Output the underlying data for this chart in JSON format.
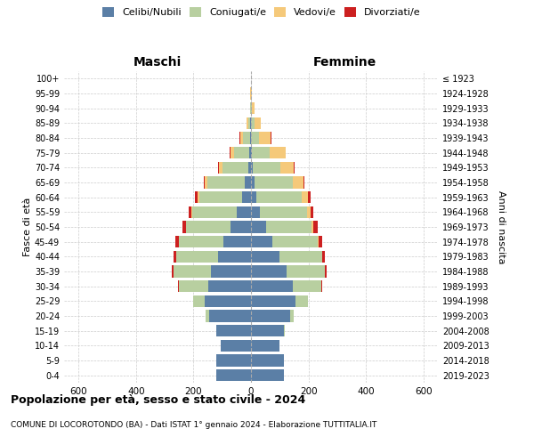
{
  "age_groups": [
    "0-4",
    "5-9",
    "10-14",
    "15-19",
    "20-24",
    "25-29",
    "30-34",
    "35-39",
    "40-44",
    "45-49",
    "50-54",
    "55-59",
    "60-64",
    "65-69",
    "70-74",
    "75-79",
    "80-84",
    "85-89",
    "90-94",
    "95-99",
    "100+"
  ],
  "birth_years": [
    "2019-2023",
    "2014-2018",
    "2009-2013",
    "2004-2008",
    "1999-2003",
    "1994-1998",
    "1989-1993",
    "1984-1988",
    "1979-1983",
    "1974-1978",
    "1969-1973",
    "1964-1968",
    "1959-1963",
    "1954-1958",
    "1949-1953",
    "1944-1948",
    "1939-1943",
    "1934-1938",
    "1929-1933",
    "1924-1928",
    "≤ 1923"
  ],
  "males": {
    "celibi": [
      120,
      120,
      105,
      120,
      145,
      160,
      150,
      140,
      115,
      95,
      70,
      50,
      30,
      22,
      10,
      5,
      3,
      2,
      0,
      0,
      0
    ],
    "coniugati": [
      0,
      0,
      0,
      2,
      12,
      40,
      100,
      130,
      145,
      155,
      155,
      155,
      150,
      130,
      90,
      55,
      25,
      8,
      2,
      1,
      0
    ],
    "vedovi": [
      0,
      0,
      0,
      0,
      0,
      0,
      0,
      0,
      0,
      0,
      2,
      3,
      5,
      8,
      10,
      12,
      10,
      6,
      2,
      1,
      0
    ],
    "divorziati": [
      0,
      0,
      0,
      0,
      0,
      2,
      3,
      5,
      10,
      12,
      12,
      10,
      10,
      5,
      3,
      2,
      1,
      1,
      0,
      0,
      0
    ]
  },
  "females": {
    "nubili": [
      115,
      115,
      100,
      115,
      135,
      155,
      145,
      125,
      100,
      75,
      52,
      32,
      20,
      12,
      6,
      3,
      1,
      1,
      0,
      0,
      0
    ],
    "coniugate": [
      0,
      0,
      0,
      2,
      15,
      42,
      100,
      132,
      148,
      158,
      160,
      162,
      155,
      135,
      95,
      62,
      28,
      10,
      4,
      1,
      0
    ],
    "vedove": [
      0,
      0,
      0,
      0,
      0,
      0,
      0,
      1,
      1,
      3,
      6,
      12,
      22,
      35,
      48,
      55,
      40,
      22,
      8,
      3,
      1
    ],
    "divorziate": [
      0,
      0,
      0,
      0,
      0,
      2,
      3,
      5,
      8,
      12,
      14,
      12,
      10,
      5,
      3,
      2,
      1,
      0,
      0,
      0,
      0
    ]
  },
  "colors": {
    "celibi_nubili": "#5B7FA6",
    "coniugati": "#B8CFA0",
    "vedovi": "#F5C97A",
    "divorziati": "#CC2020"
  },
  "title": "Popolazione per età, sesso e stato civile - 2024",
  "subtitle": "COMUNE DI LOCOROTONDO (BA) - Dati ISTAT 1° gennaio 2024 - Elaborazione TUTTITALIA.IT",
  "xlabel_left": "Maschi",
  "xlabel_right": "Femmine",
  "ylabel": "Fasce di età",
  "ylabel_right": "Anni di nascita",
  "xlim": 650,
  "legend_labels": [
    "Celibi/Nubili",
    "Coniugati/e",
    "Vedovi/e",
    "Divorziati/e"
  ],
  "background": "#FFFFFF",
  "grid_color": "#CCCCCC"
}
